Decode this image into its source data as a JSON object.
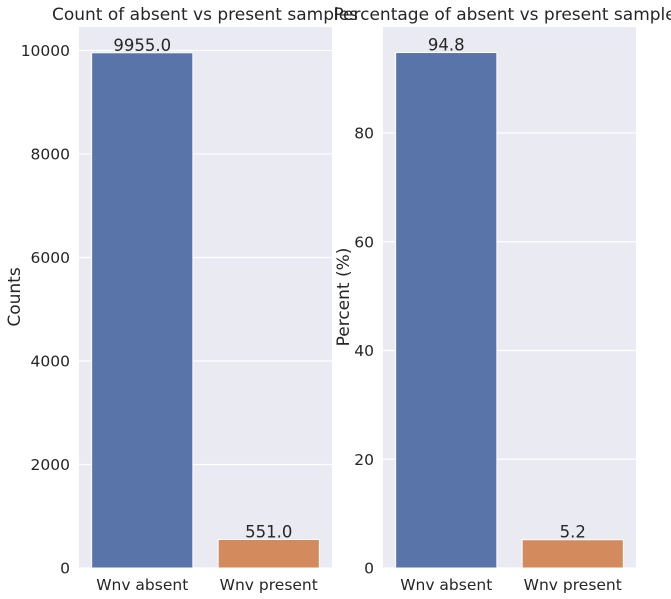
{
  "colors": {
    "absent": "#5874A8",
    "present": "#D38B5D"
  },
  "chart_data": [
    {
      "type": "bar",
      "title": "Count of absent vs present samples",
      "xlabel": "",
      "ylabel": "Counts",
      "categories": [
        "Wnv absent",
        "Wnv present"
      ],
      "values": [
        9955.0,
        551.0
      ],
      "data_labels": [
        "9955.0",
        "551.0"
      ],
      "ylim": [
        0,
        10453
      ],
      "yticks": [
        0,
        2000,
        4000,
        6000,
        8000,
        10000
      ],
      "ytick_labels": [
        "0",
        "2000",
        "4000",
        "6000",
        "8000",
        "10000"
      ],
      "grid": true
    },
    {
      "type": "bar",
      "title": "Percentage of absent vs present samples",
      "xlabel": "",
      "ylabel": "Percent (%)",
      "categories": [
        "Wnv absent",
        "Wnv present"
      ],
      "values": [
        94.8,
        5.2
      ],
      "data_labels": [
        "94.8",
        "5.2"
      ],
      "ylim": [
        0,
        99.5
      ],
      "yticks": [
        0,
        20,
        40,
        60,
        80
      ],
      "ytick_labels": [
        "0",
        "20",
        "40",
        "60",
        "80"
      ],
      "grid": true
    }
  ]
}
